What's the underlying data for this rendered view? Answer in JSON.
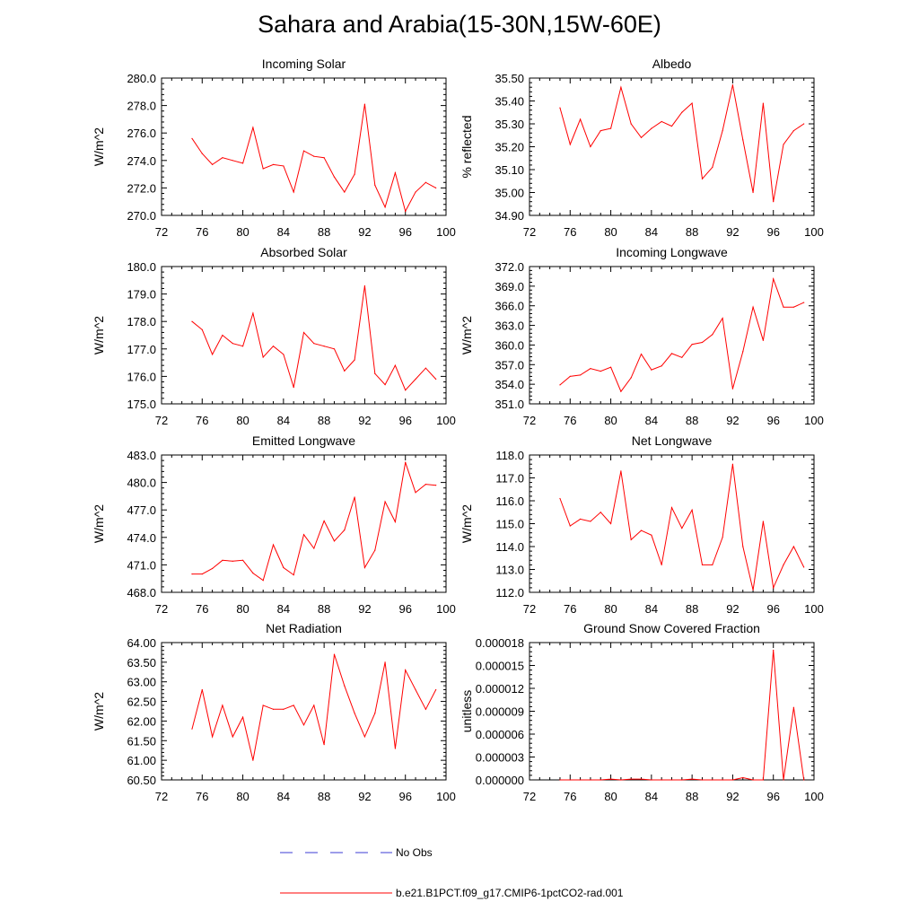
{
  "title": "Sahara and Arabia(15-30N,15W-60E)",
  "legend": {
    "position": "bottom",
    "items": [
      {
        "label": "No Obs",
        "color": "#3b3bd6",
        "style": "dashed"
      },
      {
        "label": "b.e21.B1PCT.f09_g17.CMIP6-1pctCO2-rad.001",
        "color": "#ff0000",
        "style": "solid"
      }
    ]
  },
  "chart_data": [
    {
      "type": "line",
      "title": "Incoming Solar",
      "xlabel": "",
      "ylabel": "W/m^2",
      "xlim": [
        72,
        100
      ],
      "ylim": [
        270,
        280
      ],
      "xticks": [
        "72",
        "76",
        "80",
        "84",
        "88",
        "92",
        "96",
        "100"
      ],
      "yticks": [
        "270.0",
        "272.0",
        "274.0",
        "276.0",
        "278.0",
        "280.0"
      ],
      "series": [
        {
          "color": "#ff0000",
          "x": [
            75,
            76,
            77,
            78,
            79,
            80,
            81,
            82,
            83,
            84,
            85,
            86,
            87,
            88,
            89,
            90,
            91,
            92,
            93,
            94,
            95,
            96,
            97,
            98,
            99
          ],
          "values": [
            275.6,
            274.5,
            273.7,
            274.2,
            274.0,
            273.8,
            276.4,
            273.4,
            273.7,
            273.6,
            271.7,
            274.7,
            274.3,
            274.2,
            272.8,
            271.7,
            273.0,
            278.1,
            272.2,
            270.6,
            273.1,
            270.3,
            271.7,
            272.4,
            272.0
          ]
        }
      ]
    },
    {
      "type": "line",
      "title": "Albedo",
      "xlabel": "",
      "ylabel": "% reflected",
      "xlim": [
        72,
        100
      ],
      "ylim": [
        34.9,
        35.5
      ],
      "xticks": [
        "72",
        "76",
        "80",
        "84",
        "88",
        "92",
        "96",
        "100"
      ],
      "yticks": [
        "34.90",
        "35.00",
        "35.10",
        "35.20",
        "35.30",
        "35.40",
        "35.50"
      ],
      "series": [
        {
          "color": "#ff0000",
          "x": [
            75,
            76,
            77,
            78,
            79,
            80,
            81,
            82,
            83,
            84,
            85,
            86,
            87,
            88,
            89,
            90,
            91,
            92,
            93,
            94,
            95,
            96,
            97,
            98,
            99
          ],
          "values": [
            35.37,
            35.21,
            35.32,
            35.2,
            35.27,
            35.28,
            35.46,
            35.3,
            35.24,
            35.28,
            35.31,
            35.29,
            35.35,
            35.39,
            35.06,
            35.11,
            35.27,
            35.47,
            35.23,
            35.0,
            35.39,
            34.96,
            35.21,
            35.27,
            35.3
          ]
        }
      ]
    },
    {
      "type": "line",
      "title": "Absorbed Solar",
      "xlabel": "",
      "ylabel": "W/m^2",
      "xlim": [
        72,
        100
      ],
      "ylim": [
        175,
        180
      ],
      "xticks": [
        "72",
        "76",
        "80",
        "84",
        "88",
        "92",
        "96",
        "100"
      ],
      "yticks": [
        "175.0",
        "176.0",
        "177.0",
        "178.0",
        "179.0",
        "180.0"
      ],
      "series": [
        {
          "color": "#ff0000",
          "x": [
            75,
            76,
            77,
            78,
            79,
            80,
            81,
            82,
            83,
            84,
            85,
            86,
            87,
            88,
            89,
            90,
            91,
            92,
            93,
            94,
            95,
            96,
            97,
            98,
            99
          ],
          "values": [
            178.0,
            177.7,
            176.8,
            177.5,
            177.2,
            177.1,
            178.3,
            176.7,
            177.1,
            176.8,
            175.6,
            177.6,
            177.2,
            177.1,
            177.0,
            176.2,
            176.6,
            179.3,
            176.1,
            175.7,
            176.4,
            175.5,
            175.9,
            176.3,
            175.9
          ]
        }
      ]
    },
    {
      "type": "line",
      "title": "Incoming Longwave",
      "xlabel": "",
      "ylabel": "W/m^2",
      "xlim": [
        72,
        100
      ],
      "ylim": [
        351,
        372
      ],
      "xticks": [
        "72",
        "76",
        "80",
        "84",
        "88",
        "92",
        "96",
        "100"
      ],
      "yticks": [
        "351.0",
        "354.0",
        "357.0",
        "360.0",
        "363.0",
        "366.0",
        "369.0",
        "372.0"
      ],
      "series": [
        {
          "color": "#ff0000",
          "x": [
            75,
            76,
            77,
            78,
            79,
            80,
            81,
            82,
            83,
            84,
            85,
            86,
            87,
            88,
            89,
            90,
            91,
            92,
            93,
            94,
            95,
            96,
            97,
            98,
            99
          ],
          "values": [
            353.9,
            355.2,
            355.4,
            356.4,
            356.0,
            356.6,
            352.9,
            355.0,
            358.6,
            356.2,
            356.8,
            358.7,
            358.1,
            360.1,
            360.4,
            361.6,
            364.1,
            353.3,
            359.0,
            365.8,
            360.7,
            370.1,
            365.8,
            365.8,
            366.5
          ]
        }
      ]
    },
    {
      "type": "line",
      "title": "Emitted Longwave",
      "xlabel": "",
      "ylabel": "W/m^2",
      "xlim": [
        72,
        100
      ],
      "ylim": [
        468,
        483
      ],
      "xticks": [
        "72",
        "76",
        "80",
        "84",
        "88",
        "92",
        "96",
        "100"
      ],
      "yticks": [
        "468.0",
        "471.0",
        "474.0",
        "477.0",
        "480.0",
        "483.0"
      ],
      "series": [
        {
          "color": "#ff0000",
          "x": [
            75,
            76,
            77,
            78,
            79,
            80,
            81,
            82,
            83,
            84,
            85,
            86,
            87,
            88,
            89,
            90,
            91,
            92,
            93,
            94,
            95,
            96,
            97,
            98,
            99
          ],
          "values": [
            470.0,
            470.0,
            470.6,
            471.5,
            471.4,
            471.5,
            470.1,
            469.3,
            473.2,
            470.7,
            469.9,
            474.3,
            472.8,
            475.8,
            473.6,
            474.8,
            478.4,
            470.7,
            472.6,
            477.9,
            475.7,
            482.2,
            478.9,
            479.8,
            479.7
          ]
        }
      ]
    },
    {
      "type": "line",
      "title": "Net Longwave",
      "xlabel": "",
      "ylabel": "W/m^2",
      "xlim": [
        72,
        100
      ],
      "ylim": [
        112,
        118
      ],
      "xticks": [
        "72",
        "76",
        "80",
        "84",
        "88",
        "92",
        "96",
        "100"
      ],
      "yticks": [
        "112.0",
        "113.0",
        "114.0",
        "115.0",
        "116.0",
        "117.0",
        "118.0"
      ],
      "series": [
        {
          "color": "#ff0000",
          "x": [
            75,
            76,
            77,
            78,
            79,
            80,
            81,
            82,
            83,
            84,
            85,
            86,
            87,
            88,
            89,
            90,
            91,
            92,
            93,
            94,
            95,
            96,
            97,
            98,
            99
          ],
          "values": [
            116.1,
            114.9,
            115.2,
            115.1,
            115.5,
            115.0,
            117.3,
            114.3,
            114.7,
            114.5,
            113.2,
            115.7,
            114.8,
            115.6,
            113.2,
            113.2,
            114.4,
            117.6,
            114.0,
            112.1,
            115.1,
            112.2,
            113.2,
            114.0,
            113.1
          ]
        }
      ]
    },
    {
      "type": "line",
      "title": "Net Radiation",
      "xlabel": "",
      "ylabel": "W/m^2",
      "xlim": [
        72,
        100
      ],
      "ylim": [
        60.5,
        64
      ],
      "xticks": [
        "72",
        "76",
        "80",
        "84",
        "88",
        "92",
        "96",
        "100"
      ],
      "yticks": [
        "60.50",
        "61.00",
        "61.50",
        "62.00",
        "62.50",
        "63.00",
        "63.50",
        "64.00"
      ],
      "series": [
        {
          "color": "#ff0000",
          "x": [
            75,
            76,
            77,
            78,
            79,
            80,
            81,
            82,
            83,
            84,
            85,
            86,
            87,
            88,
            89,
            90,
            91,
            92,
            93,
            94,
            95,
            96,
            97,
            98,
            99
          ],
          "values": [
            61.8,
            62.8,
            61.6,
            62.4,
            61.6,
            62.1,
            61.0,
            62.4,
            62.3,
            62.3,
            62.4,
            61.9,
            62.4,
            61.4,
            63.7,
            62.9,
            62.2,
            61.6,
            62.2,
            63.5,
            61.3,
            63.3,
            62.8,
            62.3,
            62.8
          ]
        }
      ]
    },
    {
      "type": "line",
      "title": "Ground Snow Covered Fraction",
      "xlabel": "",
      "ylabel": "unitless",
      "xlim": [
        72,
        100
      ],
      "ylim": [
        0,
        1.8e-05
      ],
      "xticks": [
        "72",
        "76",
        "80",
        "84",
        "88",
        "92",
        "96",
        "100"
      ],
      "yticks": [
        "0.000000",
        "0.000003",
        "0.000006",
        "0.000009",
        "0.000012",
        "0.000015",
        "0.000018"
      ],
      "series": [
        {
          "color": "#ff0000",
          "x": [
            75,
            76,
            77,
            78,
            79,
            80,
            81,
            82,
            83,
            84,
            85,
            86,
            87,
            88,
            89,
            90,
            91,
            92,
            93,
            94,
            95,
            96,
            97,
            98,
            99
          ],
          "values": [
            0,
            0,
            0,
            0,
            0,
            1e-07,
            0,
            1e-07,
            1e-07,
            0,
            0,
            0,
            0,
            1e-07,
            0,
            0,
            0,
            0,
            3e-07,
            0,
            0,
            1.7e-05,
            0,
            9.5e-06,
            0
          ]
        }
      ]
    }
  ]
}
